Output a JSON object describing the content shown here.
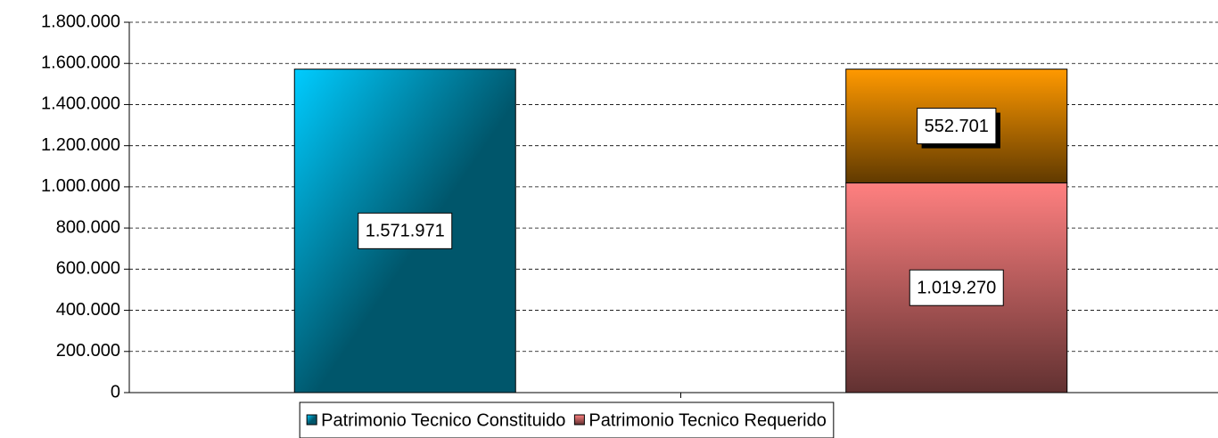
{
  "chart_data": {
    "type": "stacked-bar",
    "categories": [
      null,
      null
    ],
    "series": [
      {
        "name": "Patrimonio Tecnico Constituido",
        "color": "#00ccff",
        "values": [
          1571971,
          null
        ],
        "value_labels": [
          "1.571.971",
          null
        ]
      },
      {
        "name": "Patrimonio Tecnico Requerido",
        "color": "#ff8080",
        "values": [
          null,
          1019270
        ],
        "value_labels": [
          null,
          "1.019.270"
        ]
      },
      {
        "color": "#ff9900",
        "values": [
          null,
          552701
        ],
        "value_labels": [
          null,
          "552.701"
        ]
      }
    ],
    "ylim": [
      0,
      1800000
    ],
    "yticks": [
      0,
      {
        "value": 200000,
        "label": "200.000"
      },
      {
        "value": 400000,
        "label": "400.000"
      },
      {
        "value": 600000,
        "label": "600.000"
      },
      {
        "value": 800000,
        "label": "800.000"
      },
      {
        "value": 1000000,
        "label": "1.000.000"
      },
      {
        "value": 1200000,
        "label": "1.200.000"
      },
      {
        "value": 1400000,
        "label": "1.400.000"
      },
      {
        "value": 1600000,
        "label": "1.600.000"
      },
      {
        "value": 1800000,
        "label": "1.800.000"
      }
    ],
    "grid": true,
    "legend": "bottom"
  }
}
